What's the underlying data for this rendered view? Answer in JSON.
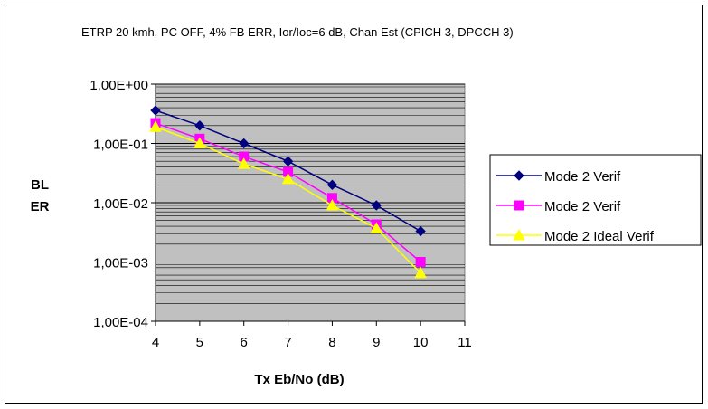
{
  "chart_data": {
    "type": "line",
    "title": "ETRP 20 kmh, PC OFF, 4% FB ERR, Ior/Ioc=6 dB, Chan Est (CPICH 3, DPCCH 3)",
    "xlabel": "Tx Eb/No (dB)",
    "ylabel_line1": "BL",
    "ylabel_line2": "ER",
    "x_ticks": [
      "4",
      "5",
      "6",
      "7",
      "8",
      "9",
      "10",
      "11"
    ],
    "xlim": [
      4,
      11
    ],
    "y_scale": "log",
    "y_ticks": [
      "1,00E+00",
      "1,00E-01",
      "1,00E-02",
      "1,00E-03",
      "1,00E-04"
    ],
    "ylim": [
      0.0001,
      1
    ],
    "grid": true,
    "legend_position": "right",
    "plot_background": "#c0c0c0",
    "series": [
      {
        "name": "Mode 2 Verif",
        "color": "#000080",
        "marker": "diamond",
        "x": [
          4,
          5,
          6,
          7,
          8,
          9,
          10
        ],
        "values": [
          0.36,
          0.2,
          0.1,
          0.05,
          0.02,
          0.009,
          0.0033
        ]
      },
      {
        "name": "Mode 2 Verif",
        "color": "#ff00ff",
        "marker": "square",
        "x": [
          4,
          5,
          6,
          7,
          8,
          9,
          10
        ],
        "values": [
          0.22,
          0.12,
          0.06,
          0.033,
          0.012,
          0.0043,
          0.001
        ]
      },
      {
        "name": "Mode 2 Ideal Verif",
        "color": "#ffff00",
        "marker": "triangle",
        "x": [
          4,
          5,
          6,
          7,
          8,
          9,
          10
        ],
        "values": [
          0.19,
          0.1,
          0.045,
          0.025,
          0.009,
          0.0037,
          0.00065
        ]
      }
    ]
  }
}
